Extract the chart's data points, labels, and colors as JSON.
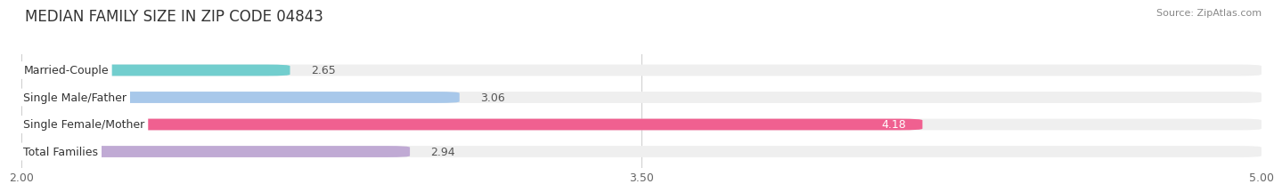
{
  "title": "MEDIAN FAMILY SIZE IN ZIP CODE 04843",
  "source": "Source: ZipAtlas.com",
  "categories": [
    "Married-Couple",
    "Single Male/Father",
    "Single Female/Mother",
    "Total Families"
  ],
  "values": [
    2.65,
    3.06,
    4.18,
    2.94
  ],
  "bar_colors": [
    "#72cece",
    "#a8c8ea",
    "#f06090",
    "#c0aad4"
  ],
  "bar_label_colors": [
    "#555555",
    "#555555",
    "#ffffff",
    "#555555"
  ],
  "xlim": [
    2.0,
    5.0
  ],
  "xticks": [
    2.0,
    3.5,
    5.0
  ],
  "xtick_labels": [
    "2.00",
    "3.50",
    "5.00"
  ],
  "background_color": "#ffffff",
  "bar_background_color": "#efefef",
  "title_fontsize": 12,
  "source_fontsize": 8,
  "tick_fontsize": 9,
  "bar_label_fontsize": 9,
  "category_fontsize": 9
}
